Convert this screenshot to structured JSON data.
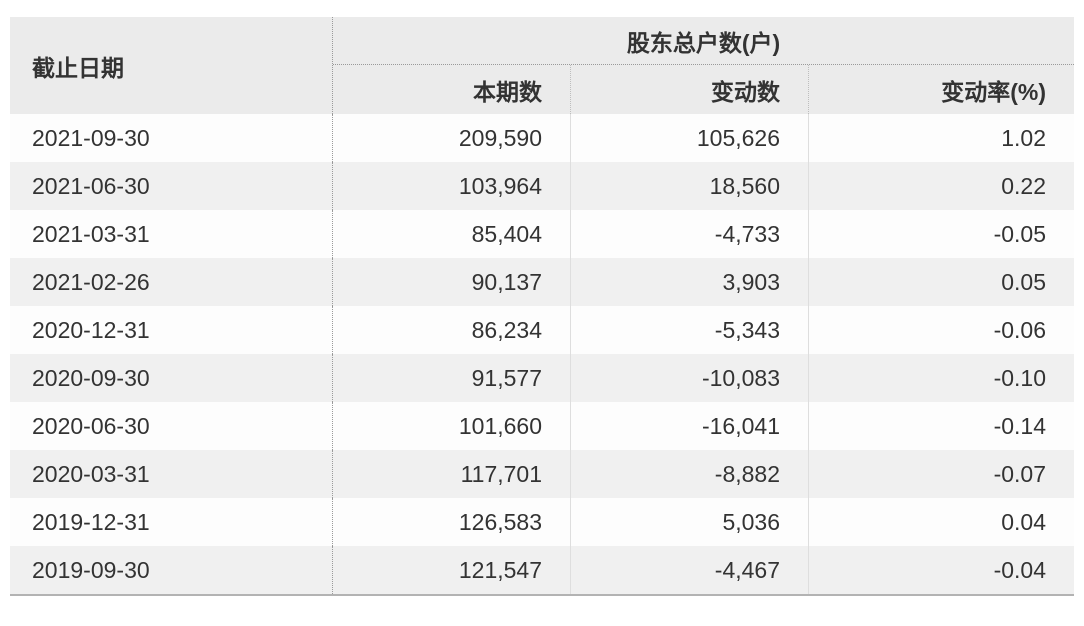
{
  "table": {
    "date_header": "截止日期",
    "group_header": "股东总户数(户)",
    "columns": [
      "本期数",
      "变动数",
      "变动率(%)"
    ],
    "rows": [
      {
        "date": "2021-09-30",
        "current": "209,590",
        "change": "105,626",
        "rate": "1.02"
      },
      {
        "date": "2021-06-30",
        "current": "103,964",
        "change": "18,560",
        "rate": "0.22"
      },
      {
        "date": "2021-03-31",
        "current": "85,404",
        "change": "-4,733",
        "rate": "-0.05"
      },
      {
        "date": "2021-02-26",
        "current": "90,137",
        "change": "3,903",
        "rate": "0.05"
      },
      {
        "date": "2020-12-31",
        "current": "86,234",
        "change": "-5,343",
        "rate": "-0.06"
      },
      {
        "date": "2020-09-30",
        "current": "91,577",
        "change": "-10,083",
        "rate": "-0.10"
      },
      {
        "date": "2020-06-30",
        "current": "101,660",
        "change": "-16,041",
        "rate": "-0.14"
      },
      {
        "date": "2020-03-31",
        "current": "117,701",
        "change": "-8,882",
        "rate": "-0.07"
      },
      {
        "date": "2019-12-31",
        "current": "126,583",
        "change": "5,036",
        "rate": "0.04"
      },
      {
        "date": "2019-09-30",
        "current": "121,547",
        "change": "-4,467",
        "rate": "-0.04"
      }
    ]
  },
  "colors": {
    "header_bg": "#ebebeb",
    "stripe_bg": "#f0f0f0",
    "text": "#333333",
    "dotted_divider": "#9a9a9a",
    "solid_divider": "#dedede",
    "bottom_border": "#b3b3b3"
  }
}
